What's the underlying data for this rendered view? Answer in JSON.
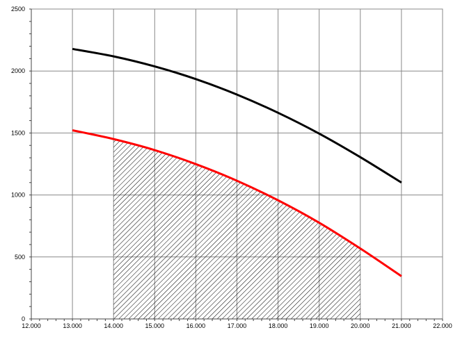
{
  "chart_data": {
    "type": "line",
    "title": "",
    "xlabel": "",
    "ylabel": "",
    "xlim": [
      12,
      22
    ],
    "ylim": [
      0,
      2500
    ],
    "x_ticks": [
      "12.000",
      "13.000",
      "14.000",
      "15.000",
      "16.000",
      "17.000",
      "18.000",
      "19.000",
      "20.000",
      "21.000",
      "22.000"
    ],
    "y_ticks": [
      "0",
      "500",
      "1000",
      "1500",
      "2000",
      "2500"
    ],
    "grid": true,
    "series": [
      {
        "color": "#000000",
        "x": [
          13,
          14,
          15,
          16,
          17,
          18,
          19,
          20,
          21
        ],
        "y": [
          2178,
          2118,
          2037,
          1935,
          1810,
          1663,
          1495,
          1305,
          1100
        ]
      },
      {
        "color": "#ff0000",
        "x": [
          13,
          14,
          15,
          16,
          17,
          18,
          19,
          20,
          21
        ],
        "y": [
          1522,
          1451,
          1362,
          1249,
          1115,
          957,
          776,
          568,
          345
        ]
      }
    ],
    "shaded_region": {
      "x_range": [
        14,
        20
      ],
      "under_series": 1,
      "pattern": "diagonal-hatch",
      "color": "#000000"
    }
  }
}
